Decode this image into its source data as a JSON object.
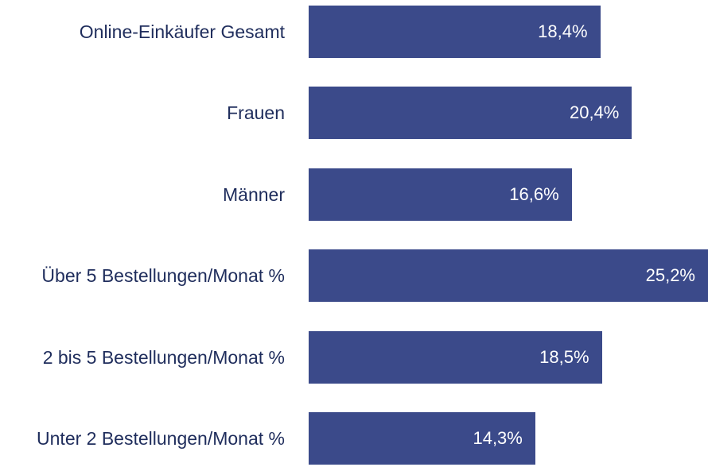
{
  "chart_data": {
    "type": "bar",
    "orientation": "horizontal",
    "categories": [
      "Online-Einkäufer Gesamt",
      "Frauen",
      "Männer",
      "Über 5 Bestellungen/Monat %",
      "2 bis 5 Bestellungen/Monat %",
      "Unter 2 Bestellungen/Monat %"
    ],
    "values": [
      18.4,
      20.4,
      16.6,
      25.2,
      18.5,
      14.3
    ],
    "value_labels": [
      "18,4%",
      "20,4%",
      "16,6%",
      "25,2%",
      "18,5%",
      "14,3%"
    ],
    "color": "#3b4a8a"
  }
}
